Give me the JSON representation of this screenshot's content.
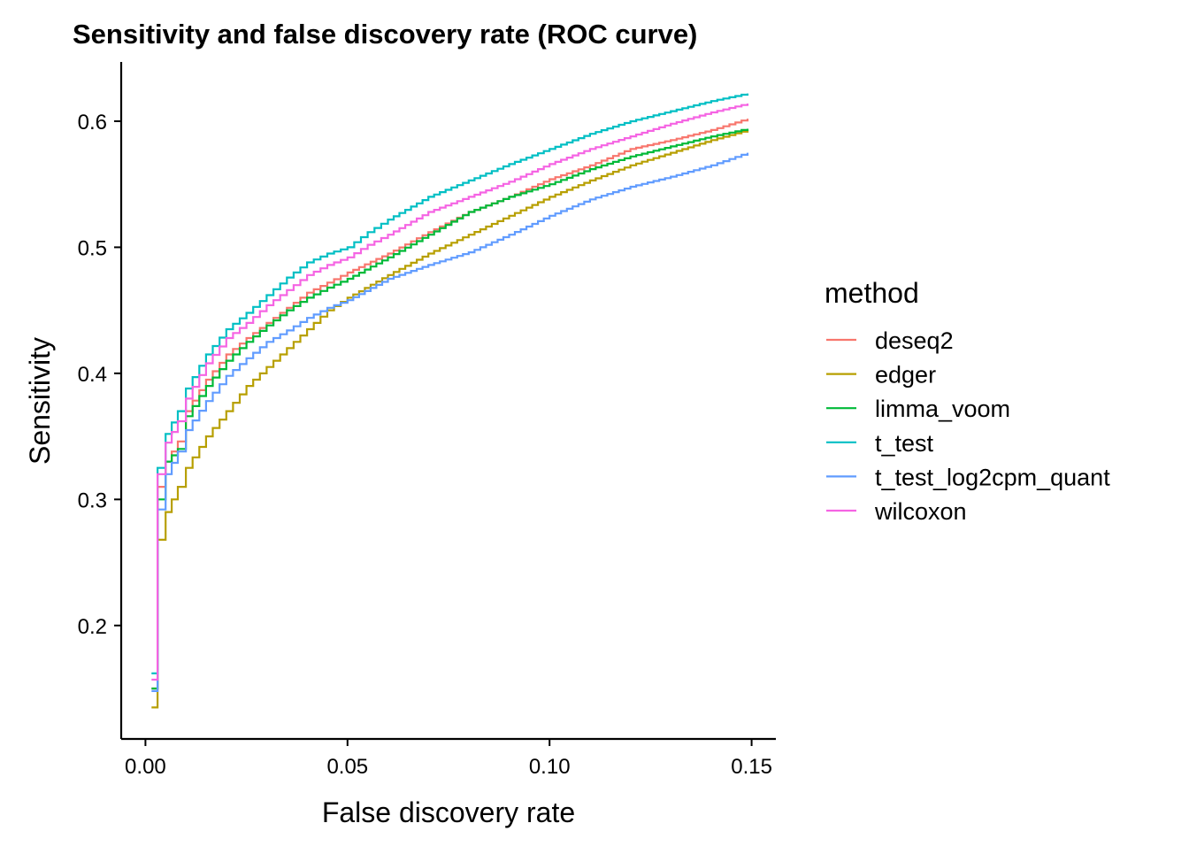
{
  "chart_data": {
    "type": "line",
    "step": true,
    "title": "Sensitivity and false discovery rate (ROC curve)",
    "xlabel": "False discovery rate",
    "ylabel": "Sensitivity",
    "xlim": [
      -0.006,
      0.156
    ],
    "ylim": [
      0.11,
      0.647
    ],
    "xticks": [
      0.0,
      0.05,
      0.1,
      0.15
    ],
    "xtick_labels": [
      "0.00",
      "0.05",
      "0.10",
      "0.15"
    ],
    "yticks": [
      0.2,
      0.3,
      0.4,
      0.5,
      0.6
    ],
    "ytick_labels": [
      "0.2",
      "0.3",
      "0.4",
      "0.5",
      "0.6"
    ],
    "grid": false,
    "legend": {
      "title": "method",
      "position": "right"
    },
    "series": [
      {
        "name": "deseq2",
        "color": "#F8766D",
        "points": [
          [
            0.0015,
            0.15
          ],
          [
            0.003,
            0.15
          ],
          [
            0.003,
            0.31
          ],
          [
            0.005,
            0.33
          ],
          [
            0.008,
            0.346
          ],
          [
            0.01,
            0.37
          ],
          [
            0.015,
            0.395
          ],
          [
            0.02,
            0.415
          ],
          [
            0.025,
            0.428
          ],
          [
            0.03,
            0.44
          ],
          [
            0.035,
            0.452
          ],
          [
            0.04,
            0.464
          ],
          [
            0.045,
            0.472
          ],
          [
            0.05,
            0.48
          ],
          [
            0.06,
            0.495
          ],
          [
            0.07,
            0.512
          ],
          [
            0.08,
            0.528
          ],
          [
            0.09,
            0.54
          ],
          [
            0.1,
            0.554
          ],
          [
            0.11,
            0.565
          ],
          [
            0.12,
            0.578
          ],
          [
            0.13,
            0.585
          ],
          [
            0.14,
            0.593
          ],
          [
            0.149,
            0.602
          ]
        ]
      },
      {
        "name": "edger",
        "color": "#B79F00",
        "points": [
          [
            0.0015,
            0.135
          ],
          [
            0.003,
            0.135
          ],
          [
            0.003,
            0.268
          ],
          [
            0.005,
            0.29
          ],
          [
            0.008,
            0.31
          ],
          [
            0.01,
            0.325
          ],
          [
            0.015,
            0.35
          ],
          [
            0.02,
            0.37
          ],
          [
            0.025,
            0.39
          ],
          [
            0.03,
            0.405
          ],
          [
            0.035,
            0.42
          ],
          [
            0.04,
            0.435
          ],
          [
            0.045,
            0.45
          ],
          [
            0.05,
            0.46
          ],
          [
            0.06,
            0.478
          ],
          [
            0.07,
            0.495
          ],
          [
            0.08,
            0.51
          ],
          [
            0.09,
            0.525
          ],
          [
            0.1,
            0.54
          ],
          [
            0.11,
            0.553
          ],
          [
            0.12,
            0.565
          ],
          [
            0.13,
            0.575
          ],
          [
            0.14,
            0.585
          ],
          [
            0.149,
            0.593
          ]
        ]
      },
      {
        "name": "limma_voom",
        "color": "#00BA38",
        "points": [
          [
            0.0015,
            0.15
          ],
          [
            0.003,
            0.15
          ],
          [
            0.003,
            0.3
          ],
          [
            0.005,
            0.33
          ],
          [
            0.008,
            0.34
          ],
          [
            0.01,
            0.366
          ],
          [
            0.015,
            0.39
          ],
          [
            0.02,
            0.41
          ],
          [
            0.025,
            0.425
          ],
          [
            0.03,
            0.438
          ],
          [
            0.035,
            0.45
          ],
          [
            0.04,
            0.46
          ],
          [
            0.045,
            0.468
          ],
          [
            0.05,
            0.475
          ],
          [
            0.06,
            0.492
          ],
          [
            0.07,
            0.51
          ],
          [
            0.08,
            0.528
          ],
          [
            0.09,
            0.54
          ],
          [
            0.1,
            0.55
          ],
          [
            0.11,
            0.562
          ],
          [
            0.12,
            0.572
          ],
          [
            0.13,
            0.58
          ],
          [
            0.14,
            0.588
          ],
          [
            0.149,
            0.594
          ]
        ]
      },
      {
        "name": "t_test",
        "color": "#00BFC4",
        "points": [
          [
            0.0015,
            0.162
          ],
          [
            0.003,
            0.162
          ],
          [
            0.003,
            0.325
          ],
          [
            0.005,
            0.352
          ],
          [
            0.008,
            0.37
          ],
          [
            0.01,
            0.388
          ],
          [
            0.015,
            0.415
          ],
          [
            0.02,
            0.435
          ],
          [
            0.025,
            0.448
          ],
          [
            0.03,
            0.462
          ],
          [
            0.035,
            0.476
          ],
          [
            0.04,
            0.488
          ],
          [
            0.045,
            0.495
          ],
          [
            0.05,
            0.5
          ],
          [
            0.055,
            0.512
          ],
          [
            0.06,
            0.522
          ],
          [
            0.07,
            0.54
          ],
          [
            0.08,
            0.553
          ],
          [
            0.09,
            0.566
          ],
          [
            0.1,
            0.578
          ],
          [
            0.11,
            0.59
          ],
          [
            0.12,
            0.6
          ],
          [
            0.13,
            0.608
          ],
          [
            0.14,
            0.616
          ],
          [
            0.149,
            0.622
          ]
        ]
      },
      {
        "name": "t_test_log2cpm_quant",
        "color": "#619CFF",
        "points": [
          [
            0.0015,
            0.148
          ],
          [
            0.003,
            0.148
          ],
          [
            0.003,
            0.292
          ],
          [
            0.005,
            0.32
          ],
          [
            0.008,
            0.338
          ],
          [
            0.01,
            0.355
          ],
          [
            0.015,
            0.378
          ],
          [
            0.02,
            0.398
          ],
          [
            0.025,
            0.412
          ],
          [
            0.03,
            0.425
          ],
          [
            0.035,
            0.434
          ],
          [
            0.04,
            0.444
          ],
          [
            0.045,
            0.452
          ],
          [
            0.05,
            0.458
          ],
          [
            0.06,
            0.475
          ],
          [
            0.07,
            0.486
          ],
          [
            0.08,
            0.496
          ],
          [
            0.09,
            0.51
          ],
          [
            0.1,
            0.525
          ],
          [
            0.11,
            0.538
          ],
          [
            0.12,
            0.548
          ],
          [
            0.13,
            0.556
          ],
          [
            0.14,
            0.565
          ],
          [
            0.149,
            0.575
          ]
        ]
      },
      {
        "name": "wilcoxon",
        "color": "#F564E3",
        "points": [
          [
            0.0015,
            0.157
          ],
          [
            0.003,
            0.157
          ],
          [
            0.003,
            0.32
          ],
          [
            0.005,
            0.345
          ],
          [
            0.008,
            0.362
          ],
          [
            0.01,
            0.38
          ],
          [
            0.015,
            0.408
          ],
          [
            0.02,
            0.428
          ],
          [
            0.025,
            0.44
          ],
          [
            0.03,
            0.454
          ],
          [
            0.035,
            0.466
          ],
          [
            0.04,
            0.478
          ],
          [
            0.045,
            0.486
          ],
          [
            0.05,
            0.492
          ],
          [
            0.055,
            0.502
          ],
          [
            0.06,
            0.51
          ],
          [
            0.07,
            0.528
          ],
          [
            0.08,
            0.54
          ],
          [
            0.09,
            0.552
          ],
          [
            0.1,
            0.566
          ],
          [
            0.11,
            0.578
          ],
          [
            0.12,
            0.588
          ],
          [
            0.13,
            0.598
          ],
          [
            0.14,
            0.607
          ],
          [
            0.149,
            0.614
          ]
        ]
      }
    ]
  }
}
